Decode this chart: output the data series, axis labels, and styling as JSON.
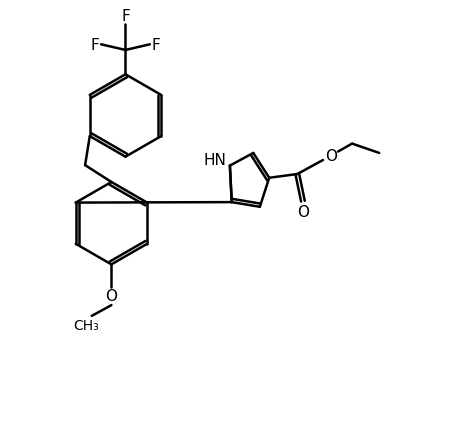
{
  "background_color": "#ffffff",
  "line_color": "#000000",
  "line_width": 1.8,
  "font_size": 11,
  "figsize": [
    4.71,
    4.39
  ],
  "dpi": 100,
  "xlim": [
    0,
    10
  ],
  "ylim": [
    0,
    9.3
  ]
}
